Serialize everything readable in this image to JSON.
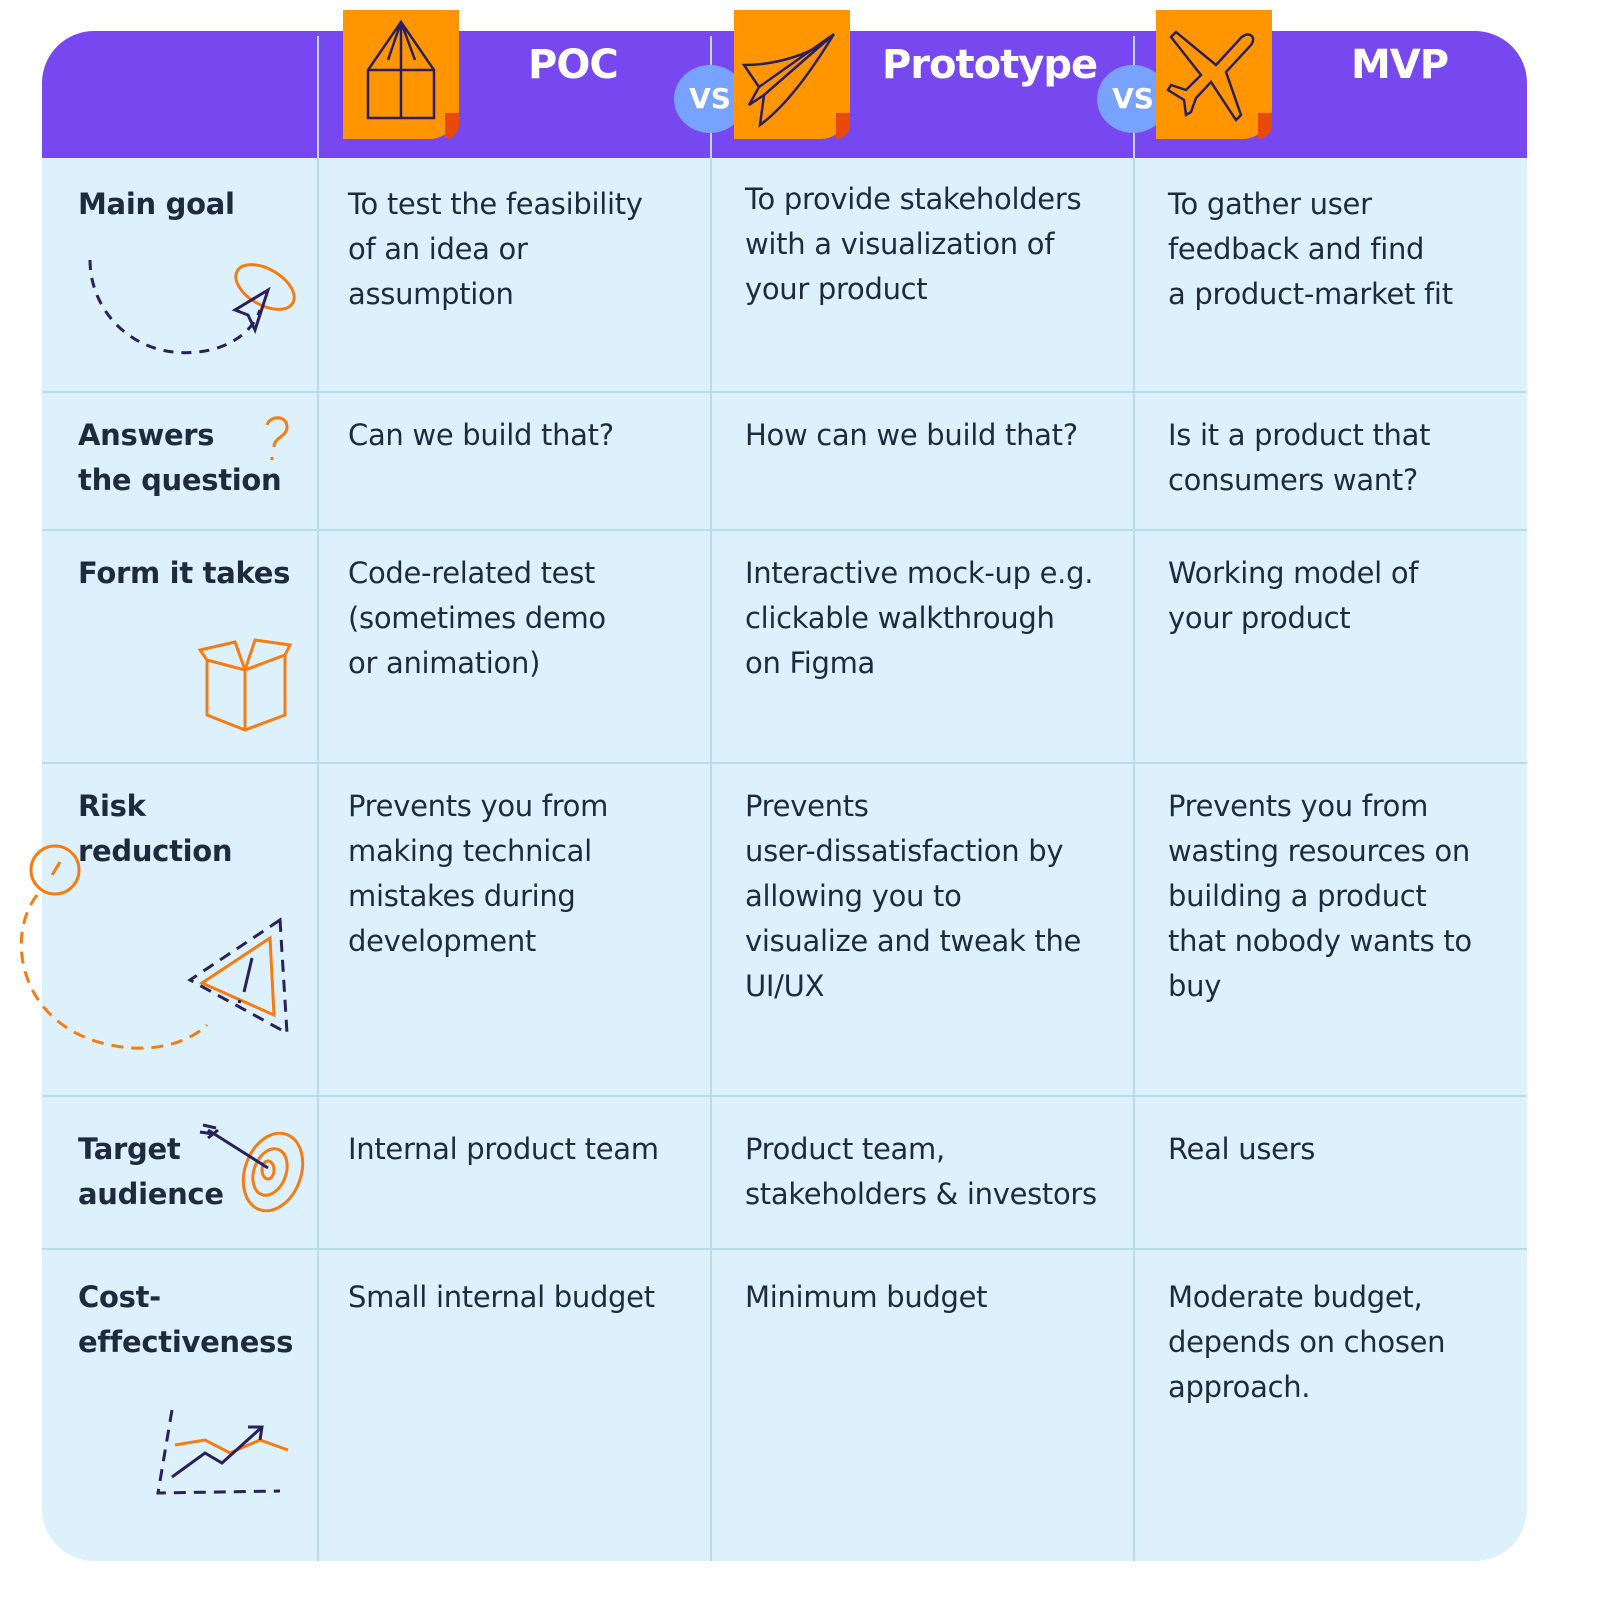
{
  "colors": {
    "header": "#7748f0",
    "tag": "#ff9500",
    "vs": "#77a2ff",
    "body": "#ddf1fc",
    "accent": "#f57c12",
    "ink": "#2b1f5c"
  },
  "header": {
    "columns": [
      {
        "label": "POC",
        "icon": "house-icon"
      },
      {
        "label": "Prototype",
        "icon": "paper-plane-icon"
      },
      {
        "label": "MVP",
        "icon": "airplane-icon"
      }
    ],
    "vs_label": "VS"
  },
  "rows": [
    {
      "label": "Main goal",
      "icon": "cursor-arrow-icon",
      "cells": [
        "To test the feasibility\nof an idea or\nassumption",
        "To provide stakeholders\nwith a visualization of\nyour product",
        "To gather user\nfeedback and find\na product-market fit"
      ]
    },
    {
      "label": "Answers\nthe question",
      "icon": "question-mark-icon",
      "cells": [
        "Can we build that?",
        "How can we build that?",
        "Is it a product that\nconsumers want?"
      ]
    },
    {
      "label": "Form it takes",
      "icon": "box-icon",
      "cells": [
        "Code-related test\n(sometimes demo\nor animation)",
        "Interactive mock-up e.g.\nclickable walkthrough\non Figma",
        "Working model of\nyour product"
      ]
    },
    {
      "label": "Risk\nreduction",
      "icon": "warning-triangle-icon",
      "cells": [
        "Prevents you from\nmaking technical\nmistakes during\ndevelopment",
        "Prevents\nuser-dissatisfaction by\nallowing you to\nvisualize and tweak the\nUI/UX",
        "Prevents you from\nwasting resources on\nbuilding a product\nthat nobody wants to\nbuy"
      ]
    },
    {
      "label": "Target\naudience",
      "icon": "target-icon",
      "cells": [
        "Internal product team",
        "Product team,\nstakeholders & investors",
        "Real users"
      ]
    },
    {
      "label": "Cost-\neffectiveness",
      "icon": "growth-chart-icon",
      "cells": [
        "Small internal budget",
        "Minimum budget",
        "Moderate budget,\ndepends on chosen\napproach."
      ]
    }
  ]
}
